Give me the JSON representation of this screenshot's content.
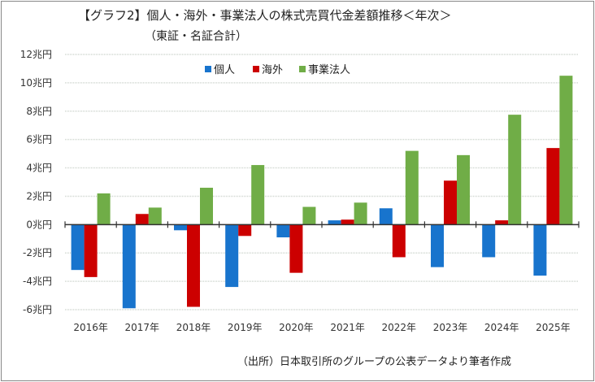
{
  "chart_data": {
    "type": "bar",
    "title": "【グラフ2】個人・海外・事業法人の株式売買代金差額推移＜年次＞",
    "subtitle": "（東証・名証合計）",
    "source": "（出所）日本取引所のグループの公表データより筆者作成",
    "xlabel": "",
    "ylabel": "",
    "ylim": [
      -6,
      12
    ],
    "yticks": [
      12,
      10,
      8,
      6,
      4,
      2,
      0,
      -2,
      -4,
      -6
    ],
    "ytick_labels": [
      "12兆円",
      "10兆円",
      "8兆円",
      "6兆円",
      "4兆円",
      "2兆円",
      "0兆円",
      "-2兆円",
      "-4兆円",
      "-6兆円"
    ],
    "categories": [
      "2016年",
      "2017年",
      "2018年",
      "2019年",
      "2020年",
      "2021年",
      "2022年",
      "2023年",
      "2024年",
      "2025年"
    ],
    "legend_position": "top-center",
    "grid": true,
    "series": [
      {
        "name": "個人",
        "color": "#1874cd",
        "values": [
          -3.2,
          -5.9,
          -0.4,
          -4.4,
          -0.9,
          0.3,
          1.15,
          -3.0,
          -2.3,
          -3.6
        ]
      },
      {
        "name": "海外",
        "color": "#cc0000",
        "values": [
          -3.7,
          0.75,
          -5.8,
          -0.8,
          -3.4,
          0.35,
          -2.3,
          3.1,
          0.3,
          5.4
        ]
      },
      {
        "name": "事業法人",
        "color": "#70ad47",
        "values": [
          2.2,
          1.2,
          2.6,
          4.2,
          1.25,
          1.55,
          5.2,
          4.9,
          7.75,
          10.5
        ]
      }
    ]
  }
}
